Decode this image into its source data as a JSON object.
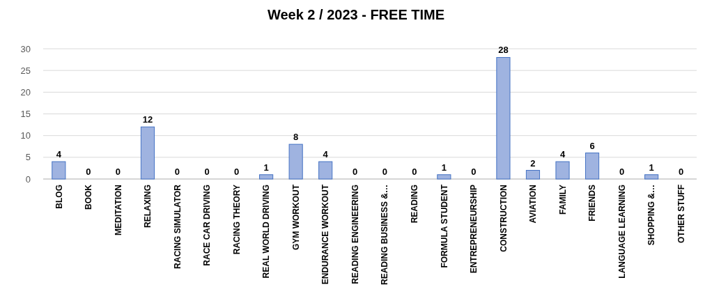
{
  "chart_data": {
    "type": "bar",
    "title": "Week 2 / 2023 - FREE TIME",
    "categories": [
      "BLOG",
      "BOOK",
      "MEDITATION",
      "RELAXING",
      "RACING SIMULATOR",
      "RACE CAR DRIVING",
      "RACING THEORY",
      "REAL WORLD DRIVING",
      "GYM WORKOUT",
      "ENDURANCE WORKOUT",
      "READING ENGINEERING",
      "READING BUSINESS &…",
      "READING",
      "FORMULA STUDENT",
      "ENTREPRENEURSHIP",
      "CONSTRUCTION",
      "AVIATION",
      "FAMILY",
      "FRIENDS",
      "LANGUAGE LEARNING",
      "SHOPPING &…",
      "OTHER STUFF"
    ],
    "values": [
      4,
      0,
      0,
      12,
      0,
      0,
      0,
      1,
      8,
      4,
      0,
      0,
      0,
      1,
      0,
      28,
      2,
      4,
      6,
      0,
      1,
      0
    ],
    "color": "#9fb3e0",
    "ylim": [
      0,
      30
    ],
    "yticks": [
      0,
      5,
      10,
      15,
      20,
      25,
      30
    ],
    "grid": "y",
    "data_labels": true
  }
}
